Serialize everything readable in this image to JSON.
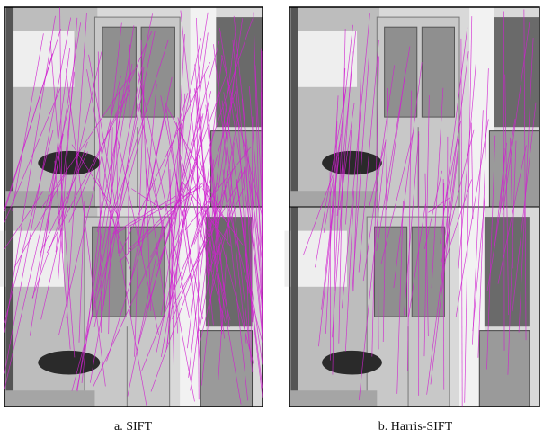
{
  "figure": {
    "panels": [
      {
        "caption": "a. SIFT"
      },
      {
        "caption": "b. Harris-SIFT"
      }
    ]
  }
}
